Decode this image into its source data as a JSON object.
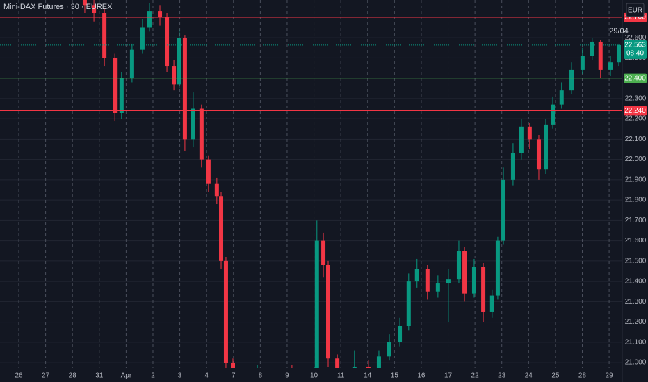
{
  "chart_data": {
    "type": "candlestick",
    "title": "Mini-DAX Futures · 30 · EUREX",
    "currency": "EUR",
    "date_label": "29/04",
    "up_color": "#089981",
    "down_color": "#f23645",
    "grid": true,
    "xlim": [
      -0.7,
      22.49
    ],
    "xticks": [
      {
        "value": 0,
        "label": "26"
      },
      {
        "value": 1,
        "label": "27"
      },
      {
        "value": 2,
        "label": "28"
      },
      {
        "value": 3,
        "label": "31"
      },
      {
        "value": 4,
        "label": "Apr"
      },
      {
        "value": 5,
        "label": "2"
      },
      {
        "value": 6,
        "label": "3"
      },
      {
        "value": 7,
        "label": "4"
      },
      {
        "value": 8,
        "label": "7"
      },
      {
        "value": 9,
        "label": "8"
      },
      {
        "value": 10,
        "label": "9"
      },
      {
        "value": 11,
        "label": "10"
      },
      {
        "value": 12,
        "label": "11"
      },
      {
        "value": 13,
        "label": "14"
      },
      {
        "value": 14,
        "label": "15"
      },
      {
        "value": 15,
        "label": "16"
      },
      {
        "value": 16,
        "label": "17"
      },
      {
        "value": 17,
        "label": "22"
      },
      {
        "value": 18,
        "label": "23"
      },
      {
        "value": 19,
        "label": "24"
      },
      {
        "value": 20,
        "label": "25"
      },
      {
        "value": 21,
        "label": "28"
      },
      {
        "value": 22,
        "label": "29"
      }
    ],
    "ylim": [
      20973,
      22785
    ],
    "yticks": [
      {
        "value": 21000,
        "label": "21.000"
      },
      {
        "value": 21100,
        "label": "21.100"
      },
      {
        "value": 21200,
        "label": "21.200"
      },
      {
        "value": 21300,
        "label": "21.300"
      },
      {
        "value": 21400,
        "label": "21.400"
      },
      {
        "value": 21500,
        "label": "21.500"
      },
      {
        "value": 21600,
        "label": "21.600"
      },
      {
        "value": 21700,
        "label": "21.700"
      },
      {
        "value": 21800,
        "label": "21.800"
      },
      {
        "value": 21900,
        "label": "21.900"
      },
      {
        "value": 22000,
        "label": "22.000"
      },
      {
        "value": 22100,
        "label": "22.100"
      },
      {
        "value": 22200,
        "label": "22.200"
      },
      {
        "value": 22300,
        "label": "22.300"
      },
      {
        "value": 22500,
        "label": "22.500"
      },
      {
        "value": 22600,
        "label": "22.600"
      }
    ],
    "levels": [
      {
        "value": 22700,
        "label": "22.700",
        "color": "#f23645"
      },
      {
        "value": 22400,
        "label": "22.400",
        "color": "#4caf50"
      },
      {
        "value": 22240,
        "label": "22.240",
        "color": "#f23645"
      }
    ],
    "last_price": {
      "value": 22563,
      "label": "22.563",
      "countdown": "08:40",
      "color": "#089981"
    },
    "x": [
      2.46,
      2.8,
      3.19,
      3.58,
      3.83,
      4.22,
      4.61,
      4.87,
      5.26,
      5.52,
      5.78,
      5.98,
      6.19,
      6.5,
      6.81,
      7.07,
      7.38,
      7.54,
      7.72,
      7.98,
      8.89,
      10.18,
      11.01,
      11.11,
      11.35,
      11.53,
      11.87,
      12.51,
      13.03,
      13.42,
      13.81,
      14.2,
      14.53,
      14.84,
      15.23,
      15.62,
      16.01,
      16.4,
      16.61,
      16.97,
      17.31,
      17.64,
      17.85,
      18.06,
      18.42,
      18.73,
      19.04,
      19.38,
      19.64,
      19.9,
      20.23,
      20.6,
      21.01,
      21.37,
      21.68,
      22.05,
      22.36
    ],
    "open": [
      22800,
      22760,
      22720,
      22500,
      22230,
      22400,
      22540,
      22650,
      22730,
      22700,
      22460,
      22370,
      22600,
      22100,
      22250,
      22000,
      21880,
      21820,
      21500,
      21000,
      20950,
      20960,
      20950,
      20960,
      21600,
      21480,
      21020,
      20960,
      20980,
      20970,
      21030,
      21100,
      21180,
      21400,
      21460,
      21350,
      21390,
      21410,
      21550,
      21340,
      21470,
      21250,
      21330,
      21600,
      21900,
      22030,
      22160,
      22100,
      21950,
      22170,
      22270,
      22340,
      22440,
      22510,
      22580,
      22440,
      22480
    ],
    "high": [
      22830,
      22790,
      22740,
      22520,
      22430,
      22570,
      22690,
      22770,
      22760,
      22720,
      22490,
      22640,
      22610,
      22330,
      22270,
      22020,
      21910,
      21840,
      21520,
      21020,
      20990,
      20990,
      20980,
      21700,
      21640,
      21500,
      21040,
      21060,
      21010,
      21060,
      21140,
      21220,
      21440,
      21510,
      21480,
      21430,
      21460,
      21600,
      21570,
      21510,
      21490,
      21360,
      21620,
      21960,
      22080,
      22200,
      22180,
      22120,
      22200,
      22310,
      22380,
      22480,
      22550,
      22600,
      22590,
      22510,
      22570
    ],
    "low": [
      22720,
      22680,
      22460,
      22190,
      22200,
      22380,
      22520,
      22630,
      22660,
      22430,
      22340,
      22350,
      22040,
      22060,
      21960,
      21840,
      21780,
      21460,
      20960,
      20900,
      20900,
      20910,
      20920,
      20940,
      21420,
      20980,
      20920,
      20930,
      20940,
      20950,
      21010,
      21080,
      21160,
      21370,
      21310,
      21320,
      21200,
      21390,
      21300,
      21320,
      21200,
      21220,
      21310,
      21580,
      21870,
      22000,
      22050,
      21900,
      21930,
      22150,
      22250,
      22320,
      22420,
      22490,
      22400,
      22410,
      22460
    ],
    "close": [
      22760,
      22720,
      22500,
      22230,
      22400,
      22540,
      22650,
      22730,
      22700,
      22460,
      22370,
      22600,
      22100,
      22250,
      22000,
      21880,
      21820,
      21500,
      21000,
      20950,
      20960,
      20950,
      20960,
      21600,
      21480,
      21020,
      20960,
      20980,
      20970,
      21030,
      21100,
      21180,
      21400,
      21460,
      21350,
      21390,
      21410,
      21550,
      21340,
      21470,
      21250,
      21330,
      21600,
      21900,
      22030,
      22160,
      22100,
      21950,
      22170,
      22270,
      22340,
      22440,
      22510,
      22580,
      22440,
      22480,
      22563
    ]
  }
}
